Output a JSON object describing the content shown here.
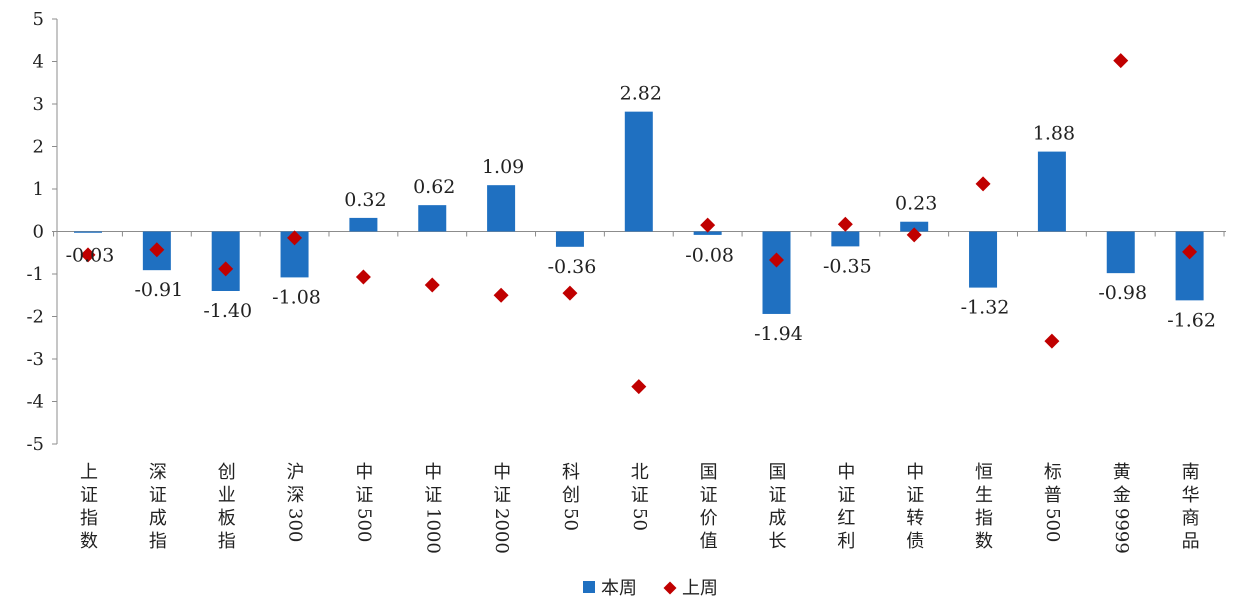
{
  "chart_data": {
    "type": "bar",
    "categories": [
      "上证指数",
      "深证成指",
      "创业板指",
      "沪深300",
      "中证500",
      "中证1000",
      "中证2000",
      "科创50",
      "北证50",
      "国证价值",
      "国证成长",
      "中证红利",
      "中证转债",
      "恒生指数",
      "标普500",
      "黄金9999",
      "南华商品"
    ],
    "series": [
      {
        "name": "本周",
        "type": "bar",
        "color": "#1F70C1",
        "values": [
          -0.03,
          -0.91,
          -1.4,
          -1.08,
          0.32,
          0.62,
          1.09,
          -0.36,
          2.82,
          -0.08,
          -1.94,
          -0.35,
          0.23,
          -1.32,
          1.88,
          -0.98,
          -1.62
        ],
        "labels": [
          "-0.03",
          "-0.91",
          "-1.40",
          "-1.08",
          "0.32",
          "0.62",
          "1.09",
          "-0.36",
          "2.82",
          "-0.08",
          "-1.94",
          "-0.35",
          "0.23",
          "-1.32",
          "1.88",
          "-0.98",
          "-1.62"
        ]
      },
      {
        "name": "上周",
        "type": "scatter",
        "marker": "diamond",
        "color": "#C00000",
        "values": [
          -0.55,
          -0.43,
          -0.88,
          -0.15,
          -1.07,
          -1.26,
          -1.5,
          -1.45,
          -3.65,
          0.15,
          -0.67,
          0.17,
          -0.08,
          1.12,
          -2.58,
          4.02,
          -0.48
        ]
      }
    ],
    "ylim": [
      -5,
      5
    ],
    "yticks": [
      "-5",
      "-4",
      "-3",
      "-2",
      "-1",
      "0",
      "1",
      "2",
      "3",
      "4",
      "5"
    ],
    "legend_position": "bottom",
    "grid": false
  }
}
